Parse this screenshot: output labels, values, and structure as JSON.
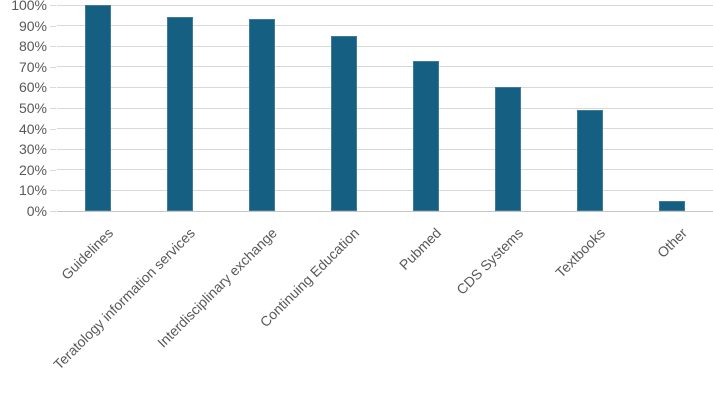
{
  "chart_data": {
    "type": "bar",
    "title": "",
    "xlabel": "",
    "ylabel": "",
    "categories": [
      "Guidelines",
      "Teratology information services",
      "Interdisciplinary exchange",
      "Continuing Education",
      "Pubmed",
      "CDS Systems",
      "Textbooks",
      "Other"
    ],
    "values": [
      100,
      94,
      93,
      85,
      73,
      60,
      49,
      5
    ],
    "ylim": [
      0,
      100
    ],
    "y_tick_step": 10,
    "y_ticks": [
      "0%",
      "10%",
      "20%",
      "30%",
      "40%",
      "50%",
      "60%",
      "70%",
      "80%",
      "90%",
      "100%"
    ],
    "grid": "horizontal",
    "legend_position": "none",
    "x_label_rotation_deg": -45,
    "colors": {
      "bar": "#156082",
      "gridline": "#D9D9D9",
      "axis_line": "#C6C6C6",
      "tick_text": "#595959",
      "background": "#FFFFFF"
    }
  }
}
